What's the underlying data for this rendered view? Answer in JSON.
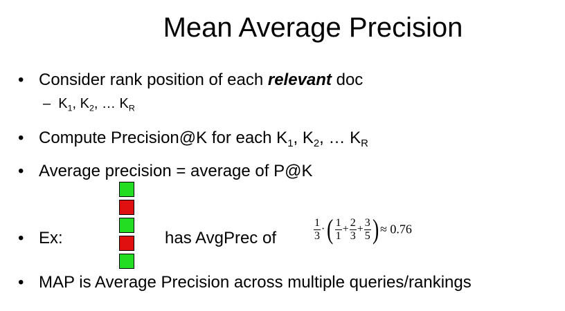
{
  "title": "Mean Average Precision",
  "bullets": {
    "b1_pre": "Consider rank position of each ",
    "b1_em": "relevant",
    "b1_post": " doc",
    "sub1": {
      "dash": "–",
      "k": "K",
      "s1": "1",
      "sep1": ", K",
      "s2": "2",
      "sep2": ", … K",
      "sR": "R"
    },
    "b2_pre": "Compute Precision@K for each K",
    "b2_s1": "1",
    "b2_sep1": ", K",
    "b2_s2": "2",
    "b2_sep2": ", … K",
    "b2_sR": "R",
    "b3": "Average precision = average of P@K",
    "b4_ex": "Ex:",
    "b4_has": "has AvgPrec of",
    "b5": "MAP is Average Precision across multiple queries/rankings"
  },
  "bullet_char": "•",
  "ranking": {
    "colors": {
      "relevant": "#22dd22",
      "nonrelevant": "#e01010"
    },
    "items": [
      "relevant",
      "nonrelevant",
      "relevant",
      "nonrelevant",
      "relevant"
    ]
  },
  "formula": {
    "outer_num": "1",
    "outer_den": "3",
    "dot": "·",
    "f1_num": "1",
    "f1_den": "1",
    "f2_num": "2",
    "f2_den": "3",
    "f3_num": "3",
    "f3_den": "5",
    "plus": "+",
    "lparen": "(",
    "rparen": ")",
    "approx": "≈ 0.76"
  }
}
